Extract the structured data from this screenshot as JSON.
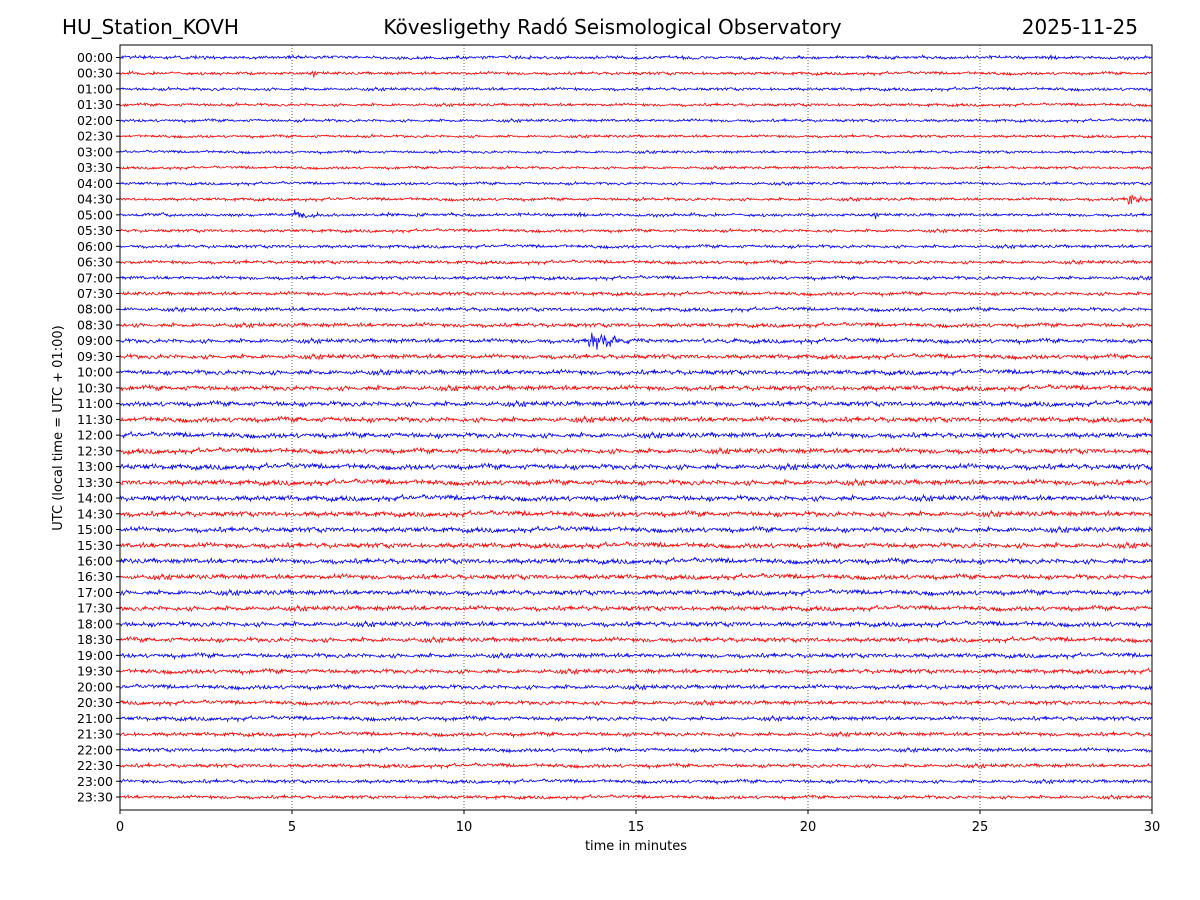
{
  "header": {
    "station": "HU_Station_KOVH",
    "observatory": "Kövesligethy Radó Seismological Observatory",
    "date": "2025-11-25"
  },
  "chart_data": {
    "type": "line",
    "title": "Kövesligethy Radó Seismological Observatory",
    "xlabel": "time in minutes",
    "ylabel": "UTC (local time = UTC + 01:00)",
    "xlim": [
      0,
      30
    ],
    "xticks": [
      0,
      5,
      10,
      15,
      20,
      25,
      30
    ],
    "vertical_gridlines": [
      5,
      10,
      15,
      20,
      25
    ],
    "grid_style": "dotted",
    "colors": {
      "even_rows": "#0000ff",
      "odd_rows": "#ff0000"
    },
    "row_labels": [
      "00:00",
      "00:30",
      "01:00",
      "01:30",
      "02:00",
      "02:30",
      "03:00",
      "03:30",
      "04:00",
      "04:30",
      "05:00",
      "05:30",
      "06:00",
      "06:30",
      "07:00",
      "07:30",
      "08:00",
      "08:30",
      "09:00",
      "09:30",
      "10:00",
      "10:30",
      "11:00",
      "11:30",
      "12:00",
      "12:30",
      "13:00",
      "13:30",
      "14:00",
      "14:30",
      "15:00",
      "15:30",
      "16:00",
      "16:30",
      "17:00",
      "17:30",
      "18:00",
      "18:30",
      "19:00",
      "19:30",
      "20:00",
      "20:30",
      "21:00",
      "21:30",
      "22:00",
      "22:30",
      "23:00",
      "23:30"
    ],
    "noise_levels": [
      0.9,
      0.9,
      0.9,
      0.85,
      0.85,
      0.8,
      0.8,
      0.8,
      0.85,
      0.9,
      0.9,
      0.9,
      0.95,
      1.0,
      1.0,
      1.05,
      1.1,
      1.2,
      1.25,
      1.3,
      1.4,
      1.45,
      1.45,
      1.5,
      1.5,
      1.5,
      1.6,
      1.55,
      1.55,
      1.5,
      1.5,
      1.5,
      1.5,
      1.45,
      1.45,
      1.4,
      1.4,
      1.35,
      1.3,
      1.3,
      1.25,
      1.2,
      1.2,
      1.15,
      1.1,
      1.1,
      1.05,
      1.0
    ],
    "events": [
      {
        "row": "04:30",
        "start_min": 29.3,
        "peak_amp": 10,
        "duration_min": 0.7
      },
      {
        "row": "05:00",
        "start_min": 5.05,
        "peak_amp": 5,
        "duration_min": 1.0
      },
      {
        "row": "09:00",
        "start_min": 13.6,
        "peak_amp": 15,
        "duration_min": 1.8
      }
    ]
  }
}
